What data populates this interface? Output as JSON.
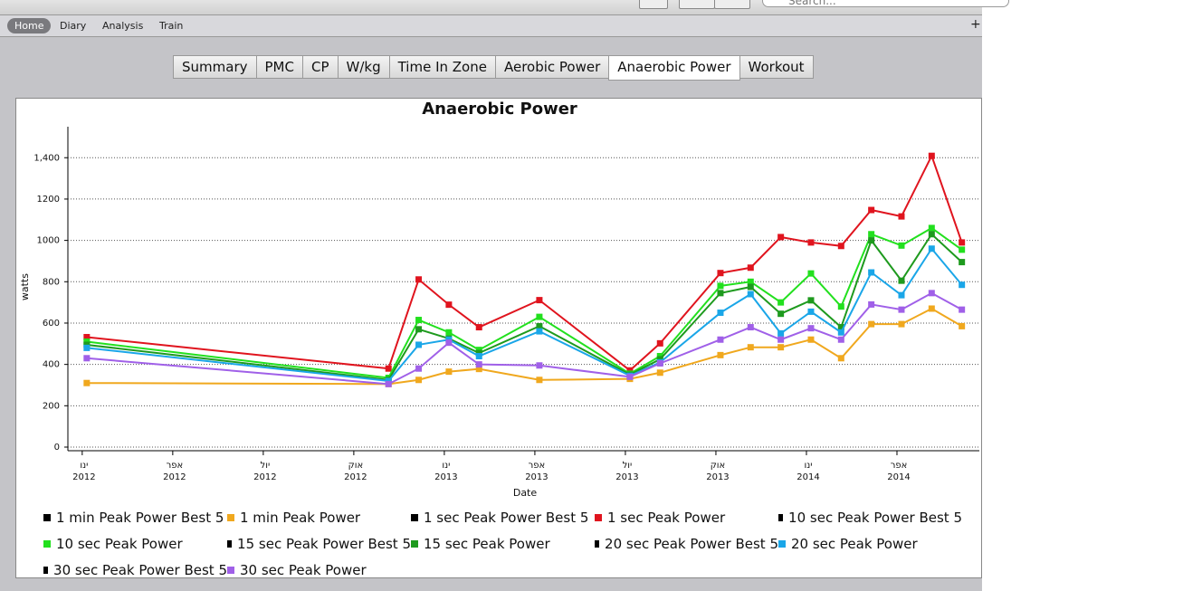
{
  "search_placeholder": "Search...",
  "nav": {
    "items": [
      "Home",
      "Diary",
      "Analysis",
      "Train"
    ],
    "active": 0
  },
  "tabs": {
    "items": [
      "Summary",
      "PMC",
      "CP",
      "W/kg",
      "Time In Zone",
      "Aerobic Power",
      "Anaerobic Power",
      "Workout"
    ],
    "active": 6
  },
  "chart_data": {
    "type": "line",
    "title": "Anaerobic Power",
    "x_label": "Date",
    "y_label": "watts",
    "x": [
      "2012-01",
      "2012-11",
      "2012-12",
      "2013-01",
      "2013-02",
      "2013-04",
      "2013-07",
      "2013-08",
      "2013-10",
      "2013-11",
      "2013-12",
      "2014-01",
      "2014-02",
      "2014-03",
      "2014-04",
      "2014-05",
      "2014-06"
    ],
    "xlim": [
      "2011-12",
      "2014-07"
    ],
    "xticks": [
      {
        "value": "2012-01",
        "label": [
          "ינו",
          "2012"
        ]
      },
      {
        "value": "2012-04",
        "label": [
          "אפר",
          "2012"
        ]
      },
      {
        "value": "2012-07",
        "label": [
          "יול",
          "2012"
        ]
      },
      {
        "value": "2012-10",
        "label": [
          "אוק",
          "2012"
        ]
      },
      {
        "value": "2013-01",
        "label": [
          "ינו",
          "2013"
        ]
      },
      {
        "value": "2013-04",
        "label": [
          "אפר",
          "2013"
        ]
      },
      {
        "value": "2013-07",
        "label": [
          "יול",
          "2013"
        ]
      },
      {
        "value": "2013-10",
        "label": [
          "אוק",
          "2013"
        ]
      },
      {
        "value": "2014-01",
        "label": [
          "ינו",
          "2014"
        ]
      },
      {
        "value": "2014-04",
        "label": [
          "אפר",
          "2014"
        ]
      }
    ],
    "ylim": [
      0,
      1550
    ],
    "yticks": [
      0,
      200,
      400,
      600,
      800,
      1000,
      1200,
      {
        "value": 1400,
        "label": "1,400"
      }
    ],
    "grid": true,
    "series": [
      {
        "name": "1 min Peak Power Best 5",
        "color": "#000000",
        "values": [
          null,
          null,
          null,
          null,
          null,
          null,
          null,
          null,
          null,
          null,
          null,
          null,
          null,
          null,
          null,
          null,
          null
        ]
      },
      {
        "name": "1 min Peak Power",
        "color": "#f0a81e",
        "values": [
          310,
          305,
          325,
          365,
          378,
          325,
          330,
          360,
          445,
          483,
          483,
          520,
          430,
          595,
          595,
          670,
          585
        ]
      },
      {
        "name": "1 sec Peak Power Best 5",
        "color": "#000000",
        "values": [
          null,
          null,
          null,
          null,
          null,
          null,
          null,
          null,
          null,
          null,
          null,
          null,
          null,
          null,
          null,
          null,
          null
        ]
      },
      {
        "name": "1 sec Peak Power",
        "color": "#e0141e",
        "values": [
          532,
          380,
          811,
          689,
          580,
          711,
          371,
          502,
          842,
          868,
          1016,
          990,
          973,
          1147,
          1116,
          1409,
          990
        ]
      },
      {
        "name": "10 sec Peak Power Best 5",
        "color": "#000000",
        "values": [
          null,
          null,
          null,
          null,
          null,
          null,
          null,
          null,
          null,
          null,
          null,
          null,
          null,
          null,
          null,
          null,
          null
        ]
      },
      {
        "name": "10 sec Peak Power",
        "color": "#22e01e",
        "values": [
          510,
          335,
          615,
          555,
          470,
          630,
          355,
          440,
          780,
          800,
          700,
          840,
          680,
          1030,
          975,
          1060,
          955
        ]
      },
      {
        "name": "15 sec Peak Power Best 5",
        "color": "#000000",
        "values": [
          null,
          null,
          null,
          null,
          null,
          null,
          null,
          null,
          null,
          null,
          null,
          null,
          null,
          null,
          null,
          null,
          null
        ]
      },
      {
        "name": "15 sec Peak Power",
        "color": "#1e9a1e",
        "values": [
          495,
          325,
          570,
          525,
          455,
          585,
          350,
          425,
          745,
          775,
          645,
          710,
          580,
          1000,
          805,
          1030,
          895
        ]
      },
      {
        "name": "20 sec Peak Power Best 5",
        "color": "#000000",
        "values": [
          null,
          null,
          null,
          null,
          null,
          null,
          null,
          null,
          null,
          null,
          null,
          null,
          null,
          null,
          null,
          null,
          null
        ]
      },
      {
        "name": "20 sec Peak Power",
        "color": "#1aa6e8",
        "values": [
          480,
          320,
          495,
          520,
          440,
          560,
          345,
          410,
          650,
          740,
          550,
          655,
          555,
          845,
          735,
          960,
          785
        ]
      },
      {
        "name": "30 sec Peak Power Best 5",
        "color": "#000000",
        "values": [
          null,
          null,
          null,
          null,
          null,
          null,
          null,
          null,
          null,
          null,
          null,
          null,
          null,
          null,
          null,
          null,
          null
        ]
      },
      {
        "name": "30 sec Peak Power",
        "color": "#a060e8",
        "values": [
          430,
          305,
          380,
          505,
          400,
          395,
          340,
          405,
          520,
          580,
          520,
          575,
          520,
          690,
          665,
          745,
          665
        ]
      }
    ]
  }
}
